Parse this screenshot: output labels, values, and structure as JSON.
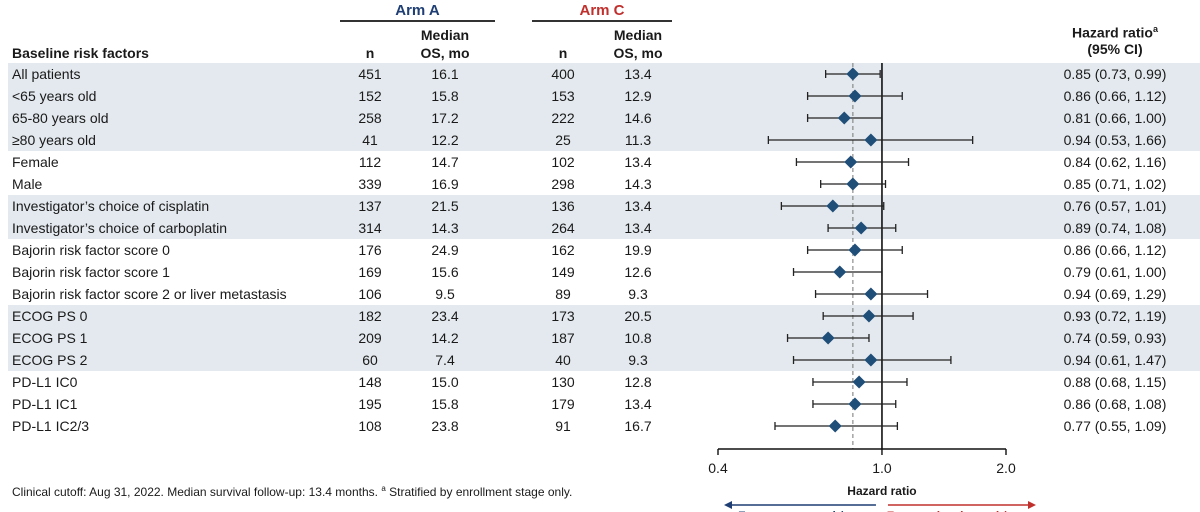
{
  "header": {
    "arm_a": "Arm A",
    "arm_c": "Arm C",
    "risk_factors": "Baseline risk factors",
    "n": "n",
    "median_os_1": "Median",
    "median_os_2": "OS, mo",
    "hr_1": "Hazard ratio",
    "hr_sup": "a",
    "hr_2": "(95% CI)"
  },
  "colors": {
    "arm_a": "#1f3f74",
    "arm_c": "#c0302d",
    "band": "#e3e9ee",
    "diamond": "#1f4e79"
  },
  "chart_data": {
    "type": "forest",
    "xlabel": "Hazard ratio",
    "xscale": "log",
    "xlim": [
      0.4,
      2.0
    ],
    "ticks": [
      0.4,
      1.0,
      2.0
    ],
    "tick_labels": [
      "0.4",
      "1.0",
      "2.0"
    ],
    "reference_line": 1.0,
    "overall_line": 0.85,
    "rows": [
      {
        "label": "All patients",
        "nA": "451",
        "osA": "16.1",
        "nC": "400",
        "osC": "13.4",
        "hr": 0.85,
        "lo": 0.73,
        "hi": 0.99,
        "text": "0.85 (0.73, 0.99)",
        "shaded": true
      },
      {
        "label": "<65 years old",
        "nA": "152",
        "osA": "15.8",
        "nC": "153",
        "osC": "12.9",
        "hr": 0.86,
        "lo": 0.66,
        "hi": 1.12,
        "text": "0.86 (0.66, 1.12)",
        "shaded": true
      },
      {
        "label": "65-80 years old",
        "nA": "258",
        "osA": "17.2",
        "nC": "222",
        "osC": "14.6",
        "hr": 0.81,
        "lo": 0.66,
        "hi": 1.0,
        "text": "0.81 (0.66, 1.00)",
        "shaded": true
      },
      {
        "label": "≥80 years old",
        "nA": "41",
        "osA": "12.2",
        "nC": "25",
        "osC": "11.3",
        "hr": 0.94,
        "lo": 0.53,
        "hi": 1.66,
        "text": "0.94 (0.53, 1.66)",
        "shaded": true
      },
      {
        "label": "Female",
        "nA": "112",
        "osA": "14.7",
        "nC": "102",
        "osC": "13.4",
        "hr": 0.84,
        "lo": 0.62,
        "hi": 1.16,
        "text": "0.84 (0.62, 1.16)",
        "shaded": false
      },
      {
        "label": "Male",
        "nA": "339",
        "osA": "16.9",
        "nC": "298",
        "osC": "14.3",
        "hr": 0.85,
        "lo": 0.71,
        "hi": 1.02,
        "text": "0.85 (0.71, 1.02)",
        "shaded": false
      },
      {
        "label": "Investigator’s choice of cisplatin",
        "nA": "137",
        "osA": "21.5",
        "nC": "136",
        "osC": "13.4",
        "hr": 0.76,
        "lo": 0.57,
        "hi": 1.01,
        "text": "0.76 (0.57, 1.01)",
        "shaded": true
      },
      {
        "label": "Investigator’s choice of carboplatin",
        "nA": "314",
        "osA": "14.3",
        "nC": "264",
        "osC": "13.4",
        "hr": 0.89,
        "lo": 0.74,
        "hi": 1.08,
        "text": "0.89 (0.74, 1.08)",
        "shaded": true
      },
      {
        "label": "Bajorin risk factor score 0",
        "nA": "176",
        "osA": "24.9",
        "nC": "162",
        "osC": "19.9",
        "hr": 0.86,
        "lo": 0.66,
        "hi": 1.12,
        "text": "0.86 (0.66, 1.12)",
        "shaded": false
      },
      {
        "label": "Bajorin risk factor score 1",
        "nA": "169",
        "osA": "15.6",
        "nC": "149",
        "osC": "12.6",
        "hr": 0.79,
        "lo": 0.61,
        "hi": 1.0,
        "text": "0.79 (0.61, 1.00)",
        "shaded": false
      },
      {
        "label": "Bajorin risk factor score 2 or liver metastasis",
        "nA": "106",
        "osA": "9.5",
        "nC": "89",
        "osC": "9.3",
        "hr": 0.94,
        "lo": 0.69,
        "hi": 1.29,
        "text": "0.94 (0.69, 1.29)",
        "shaded": false
      },
      {
        "label": "ECOG PS 0",
        "nA": "182",
        "osA": "23.4",
        "nC": "173",
        "osC": "20.5",
        "hr": 0.93,
        "lo": 0.72,
        "hi": 1.19,
        "text": "0.93 (0.72, 1.19)",
        "shaded": true
      },
      {
        "label": "ECOG PS 1",
        "nA": "209",
        "osA": "14.2",
        "nC": "187",
        "osC": "10.8",
        "hr": 0.74,
        "lo": 0.59,
        "hi": 0.93,
        "text": "0.74 (0.59, 0.93)",
        "shaded": true
      },
      {
        "label": "ECOG PS 2",
        "nA": "60",
        "osA": "7.4",
        "nC": "40",
        "osC": "9.3",
        "hr": 0.94,
        "lo": 0.61,
        "hi": 1.47,
        "text": "0.94 (0.61, 1.47)",
        "shaded": true
      },
      {
        "label": "PD-L1 IC0",
        "nA": "148",
        "osA": "15.0",
        "nC": "130",
        "osC": "12.8",
        "hr": 0.88,
        "lo": 0.68,
        "hi": 1.15,
        "text": "0.88 (0.68, 1.15)",
        "shaded": false
      },
      {
        "label": "PD-L1 IC1",
        "nA": "195",
        "osA": "15.8",
        "nC": "179",
        "osC": "13.4",
        "hr": 0.86,
        "lo": 0.68,
        "hi": 1.08,
        "text": "0.86 (0.68, 1.08)",
        "shaded": false
      },
      {
        "label": "PD-L1 IC2/3",
        "nA": "108",
        "osA": "23.8",
        "nC": "91",
        "osC": "16.7",
        "hr": 0.77,
        "lo": 0.55,
        "hi": 1.09,
        "text": "0.77 (0.55, 1.09)",
        "shaded": false
      }
    ],
    "favors_left": "Favors atezo + plt/gem",
    "favors_right": "Favors placebo + plt/gem"
  },
  "footnote": {
    "text": "Clinical cutoff: Aug 31, 2022. Median survival follow-up: 13.4 months.",
    "sup": "a",
    "text2": " Stratified by enrollment stage only."
  }
}
